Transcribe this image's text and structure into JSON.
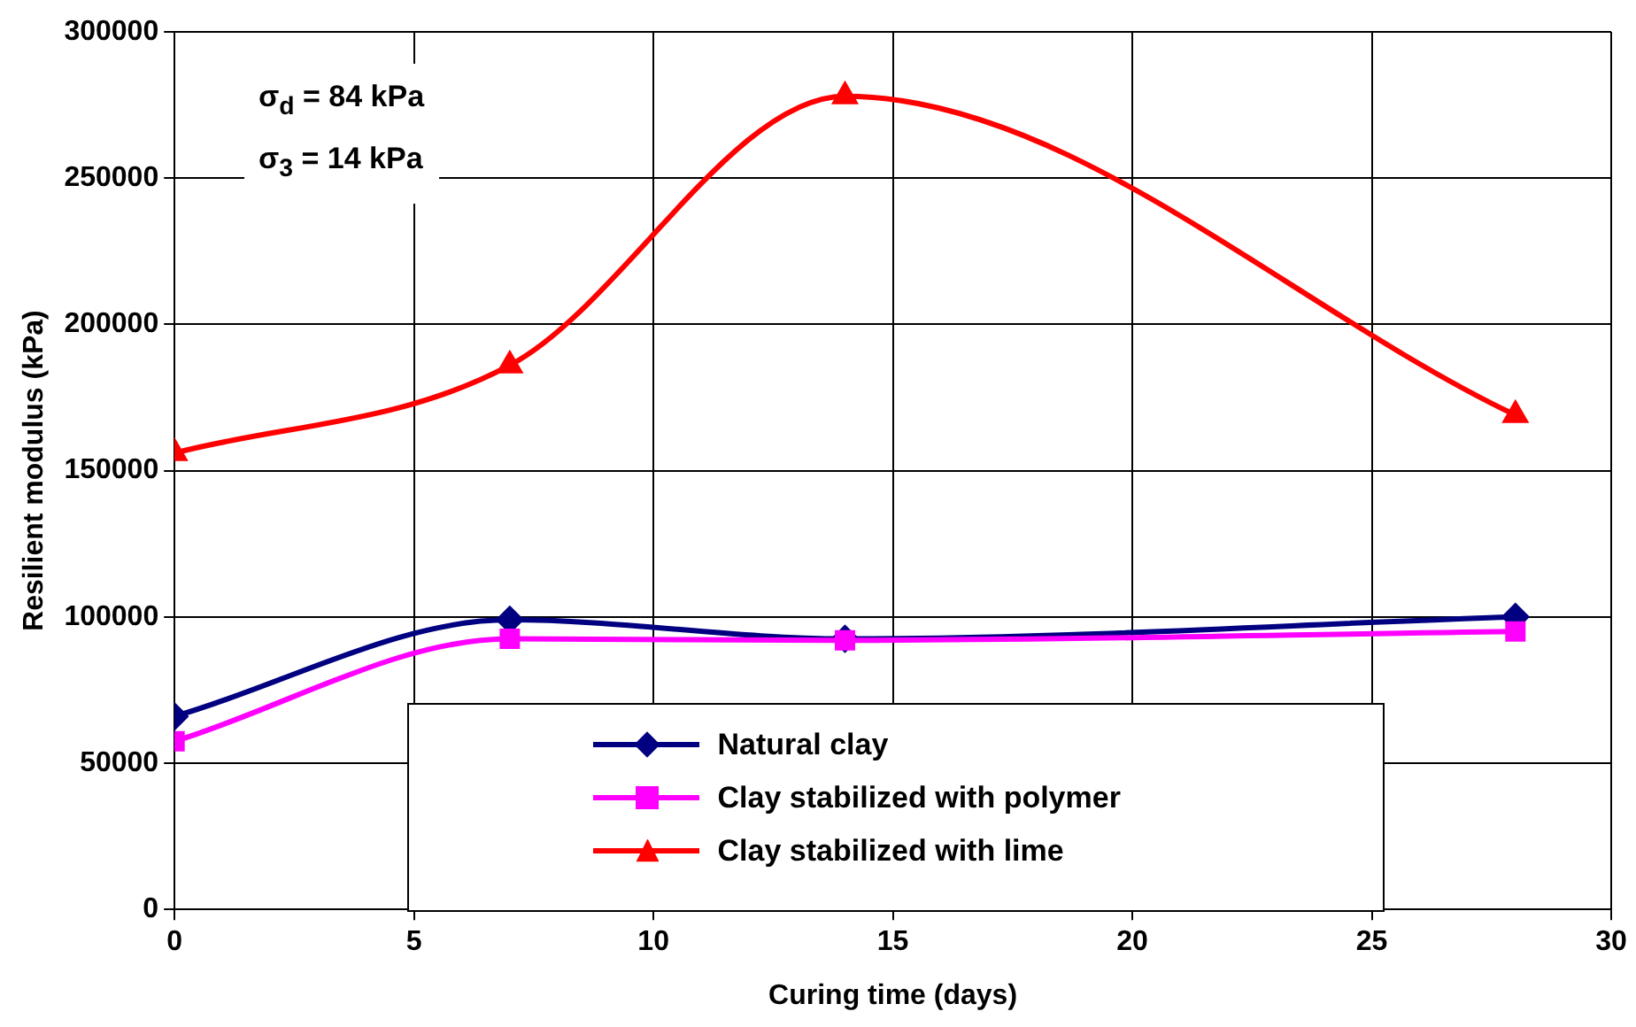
{
  "chart_data": {
    "type": "line",
    "xlabel": "Curing time (days)",
    "ylabel": "Resilient modulus (kPa)",
    "xlim": [
      0,
      30
    ],
    "xticks": [
      0,
      5,
      10,
      15,
      20,
      25,
      30
    ],
    "ylim": [
      0,
      300000
    ],
    "yticks": [
      0,
      50000,
      100000,
      150000,
      200000,
      250000,
      300000
    ],
    "grid": true,
    "legend": "bottom",
    "line_style": "solid",
    "annotations": [
      "σ$_{d}$ = 84 kPa",
      "σ$_{3}$ = 14 kPa"
    ],
    "series": [
      {
        "name": "Natural clay",
        "color": "#000080",
        "marker": "diamond",
        "x": [
          0,
          7,
          14,
          28
        ],
        "values": [
          66000,
          99000,
          92500,
          100000
        ]
      },
      {
        "name": "Clay stabilized with polymer",
        "color": "#ff00ff",
        "marker": "square",
        "x": [
          0,
          7,
          14,
          28
        ],
        "values": [
          57500,
          92500,
          92000,
          95000
        ]
      },
      {
        "name": "Clay stabilized with lime",
        "color": "#ff0000",
        "marker": "triangle",
        "x": [
          0,
          7,
          14,
          28
        ],
        "values": [
          156000,
          186000,
          278000,
          169000
        ]
      }
    ]
  }
}
